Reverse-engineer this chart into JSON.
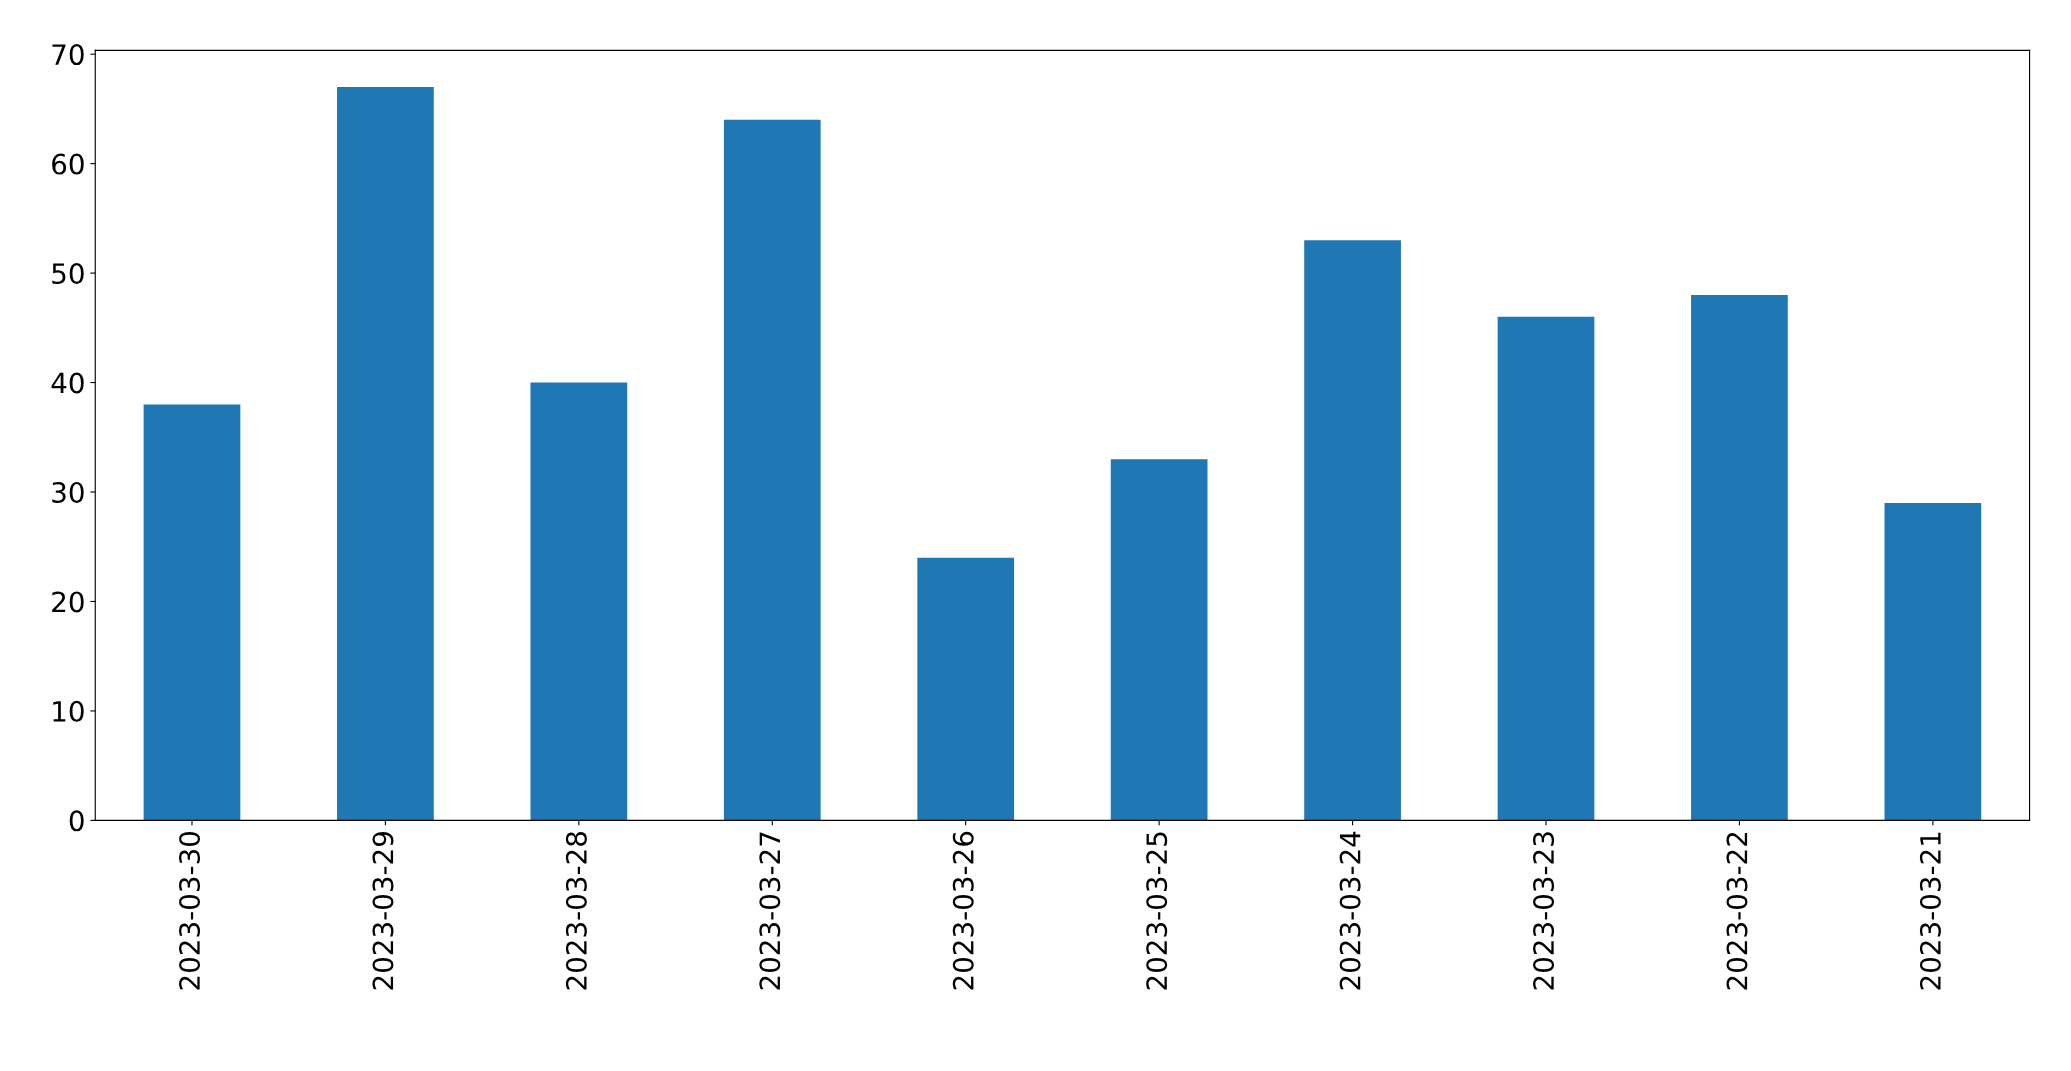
{
  "chart_data": {
    "type": "bar",
    "categories": [
      "2023-03-30",
      "2023-03-29",
      "2023-03-28",
      "2023-03-27",
      "2023-03-26",
      "2023-03-25",
      "2023-03-24",
      "2023-03-23",
      "2023-03-22",
      "2023-03-21"
    ],
    "values": [
      38,
      67,
      40,
      64,
      24,
      33,
      53,
      46,
      48,
      29
    ],
    "color": "#1f77b4",
    "ylim": [
      0,
      70.35
    ],
    "yticks": [
      0,
      10,
      20,
      30,
      40,
      50,
      60,
      70
    ],
    "grid": false,
    "legend": false
  }
}
